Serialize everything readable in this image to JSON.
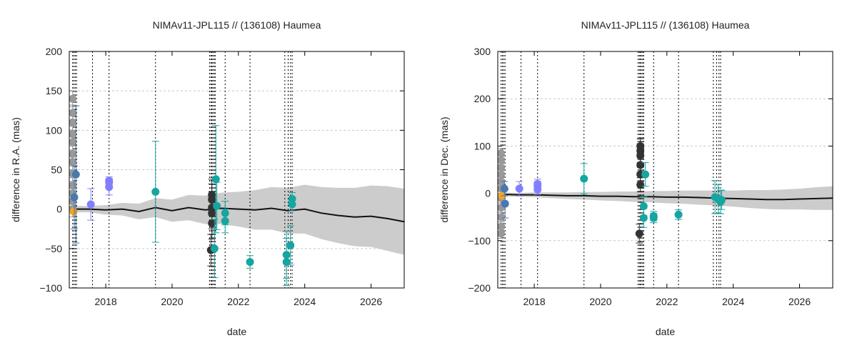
{
  "chart_data": [
    {
      "type": "scatter",
      "title": "NIMAv11-JPL115 // (136108) Haumea",
      "xlabel": "date",
      "ylabel": "difference in R.A. (mas)",
      "xlim": [
        2016.9,
        2027.0
      ],
      "ylim": [
        -100,
        200
      ],
      "xticks": [
        2018,
        2020,
        2022,
        2024,
        2026
      ],
      "yticks": [
        -100,
        -50,
        0,
        50,
        100,
        150,
        200
      ],
      "grid": "horizontal-dashed",
      "vlines": [
        2017.0,
        2017.04,
        2017.08,
        2017.12,
        2017.6,
        2018.1,
        2019.5,
        2021.13,
        2021.17,
        2021.2,
        2021.23,
        2021.27,
        2021.3,
        2021.6,
        2022.35,
        2023.4,
        2023.5,
        2023.57,
        2023.62
      ],
      "model": {
        "x": [
          2017.0,
          2017.5,
          2018.0,
          2018.5,
          2019.0,
          2019.5,
          2020.0,
          2020.5,
          2021.0,
          2021.5,
          2022.0,
          2022.5,
          2023.0,
          2023.5,
          2024.0,
          2024.5,
          2025.0,
          2025.5,
          2026.0,
          2026.5,
          2027.0
        ],
        "y": [
          0,
          0,
          -1,
          0,
          -3,
          2,
          -2,
          2,
          -1,
          1,
          0,
          -1,
          1,
          -2,
          0,
          -5,
          -8,
          -10,
          -9,
          -12,
          -16
        ],
        "band": [
          4,
          4,
          6,
          8,
          10,
          12,
          14,
          16,
          18,
          20,
          22,
          25,
          27,
          29,
          31,
          33,
          35,
          37,
          39,
          41,
          42
        ]
      },
      "series": [
        {
          "name": "",
          "color": "#999999",
          "points": [
            {
              "x": 2017.0,
              "y": 140,
              "err": 10
            },
            {
              "x": 2017.0,
              "y": 122,
              "err": 10
            },
            {
              "x": 2017.0,
              "y": 110,
              "err": 10
            },
            {
              "x": 2017.0,
              "y": 95,
              "err": 10
            },
            {
              "x": 2017.0,
              "y": 85,
              "err": 10
            },
            {
              "x": 2017.0,
              "y": 70,
              "err": 10
            },
            {
              "x": 2017.0,
              "y": 60,
              "err": 10
            },
            {
              "x": 2017.0,
              "y": 45,
              "err": 10
            },
            {
              "x": 2017.0,
              "y": 30,
              "err": 10
            },
            {
              "x": 2017.0,
              "y": 20,
              "err": 10
            },
            {
              "x": 2017.0,
              "y": 10,
              "err": 10
            },
            {
              "x": 2017.0,
              "y": 0,
              "err": 10
            }
          ]
        },
        {
          "name": "",
          "color": "#f5a623",
          "points": [
            {
              "x": 2017.03,
              "y": -3,
              "err": 0
            }
          ]
        },
        {
          "name": "",
          "color": "#4a78b0",
          "points": [
            {
              "x": 2017.1,
              "y": 44,
              "err": 87
            },
            {
              "x": 2017.05,
              "y": 15,
              "err": 40
            }
          ]
        },
        {
          "name": "",
          "color": "#8080ff",
          "points": [
            {
              "x": 2017.55,
              "y": 6,
              "err": 20
            },
            {
              "x": 2018.1,
              "y": 36,
              "err": 5
            },
            {
              "x": 2018.1,
              "y": 34,
              "err": 5
            },
            {
              "x": 2018.1,
              "y": 28,
              "err": 10
            }
          ]
        },
        {
          "name": "",
          "color": "#333333",
          "points": [
            {
              "x": 2021.2,
              "y": 18,
              "err": 20
            },
            {
              "x": 2021.2,
              "y": 12,
              "err": 20
            },
            {
              "x": 2021.2,
              "y": 2,
              "err": 20
            },
            {
              "x": 2021.2,
              "y": -5,
              "err": 20
            },
            {
              "x": 2021.2,
              "y": -18,
              "err": 20
            },
            {
              "x": 2021.17,
              "y": -52,
              "err": 20
            }
          ]
        },
        {
          "name": "",
          "color": "#16a5a0",
          "points": [
            {
              "x": 2019.5,
              "y": 22,
              "err": 64
            },
            {
              "x": 2021.32,
              "y": 38,
              "err": 68
            },
            {
              "x": 2021.35,
              "y": 4,
              "err": 30
            },
            {
              "x": 2021.28,
              "y": -50,
              "err": 37
            },
            {
              "x": 2021.6,
              "y": -5,
              "err": 15
            },
            {
              "x": 2021.6,
              "y": -15,
              "err": 15
            },
            {
              "x": 2022.35,
              "y": -67,
              "err": 8
            },
            {
              "x": 2023.45,
              "y": -58,
              "err": 30
            },
            {
              "x": 2023.45,
              "y": -67,
              "err": 30
            },
            {
              "x": 2023.57,
              "y": -46,
              "err": 25
            },
            {
              "x": 2023.62,
              "y": 13,
              "err": 8
            },
            {
              "x": 2023.62,
              "y": 6,
              "err": 8
            }
          ]
        }
      ]
    },
    {
      "type": "scatter",
      "title": "NIMAv11-JPL115 // (136108) Haumea",
      "xlabel": "date",
      "ylabel": "difference in Dec. (mas)",
      "xlim": [
        2016.9,
        2027.0
      ],
      "ylim": [
        -200,
        300
      ],
      "xticks": [
        2018,
        2020,
        2022,
        2024,
        2026
      ],
      "yticks": [
        -200,
        -100,
        0,
        100,
        200,
        300
      ],
      "grid": "horizontal-dashed",
      "vlines": [
        2017.0,
        2017.04,
        2017.08,
        2017.12,
        2017.6,
        2018.1,
        2019.5,
        2021.13,
        2021.17,
        2021.2,
        2021.23,
        2021.27,
        2021.3,
        2021.6,
        2022.35,
        2023.4,
        2023.5,
        2023.57,
        2023.62
      ],
      "model": {
        "x": [
          2017.0,
          2017.5,
          2018.0,
          2018.5,
          2019.0,
          2019.5,
          2020.0,
          2020.5,
          2021.0,
          2021.5,
          2022.0,
          2022.5,
          2023.0,
          2023.5,
          2024.0,
          2024.5,
          2025.0,
          2025.5,
          2026.0,
          2026.5,
          2027.0
        ],
        "y": [
          -2,
          -3,
          -3,
          -4,
          -5,
          -5,
          -6,
          -6,
          -7,
          -7,
          -8,
          -8,
          -9,
          -10,
          -11,
          -12,
          -13,
          -13,
          -12,
          -11,
          -10
        ],
        "band": [
          4,
          4,
          5,
          6,
          7,
          8,
          9,
          10,
          11,
          12,
          13,
          14,
          15,
          16,
          17,
          19,
          20,
          21,
          22,
          24,
          25
        ]
      },
      "series": [
        {
          "name": "",
          "color": "#999999",
          "points": [
            {
              "x": 2017.0,
              "y": 85,
              "err": 10
            },
            {
              "x": 2017.0,
              "y": 70,
              "err": 10
            },
            {
              "x": 2017.0,
              "y": 55,
              "err": 10
            },
            {
              "x": 2017.0,
              "y": 40,
              "err": 10
            },
            {
              "x": 2017.0,
              "y": 25,
              "err": 10
            },
            {
              "x": 2017.0,
              "y": 10,
              "err": 10
            },
            {
              "x": 2017.0,
              "y": -10,
              "err": 10
            },
            {
              "x": 2017.0,
              "y": -30,
              "err": 10
            },
            {
              "x": 2017.0,
              "y": -50,
              "err": 10
            },
            {
              "x": 2017.0,
              "y": -70,
              "err": 10
            },
            {
              "x": 2017.0,
              "y": -85,
              "err": 10
            }
          ]
        },
        {
          "name": "",
          "color": "#f5a623",
          "points": [
            {
              "x": 2017.03,
              "y": -5,
              "err": 0
            }
          ]
        },
        {
          "name": "",
          "color": "#4a78b0",
          "points": [
            {
              "x": 2017.1,
              "y": 10,
              "err": 15
            },
            {
              "x": 2017.12,
              "y": -22,
              "err": 30
            }
          ]
        },
        {
          "name": "",
          "color": "#8080ff",
          "points": [
            {
              "x": 2017.55,
              "y": 10,
              "err": 15
            },
            {
              "x": 2018.1,
              "y": 20,
              "err": 10
            },
            {
              "x": 2018.1,
              "y": 15,
              "err": 10
            },
            {
              "x": 2018.1,
              "y": 8,
              "err": 10
            }
          ]
        },
        {
          "name": "",
          "color": "#333333",
          "points": [
            {
              "x": 2021.2,
              "y": 100,
              "err": 15
            },
            {
              "x": 2021.2,
              "y": 90,
              "err": 15
            },
            {
              "x": 2021.2,
              "y": 80,
              "err": 15
            },
            {
              "x": 2021.2,
              "y": 60,
              "err": 15
            },
            {
              "x": 2021.2,
              "y": 40,
              "err": 15
            },
            {
              "x": 2021.2,
              "y": 18,
              "err": 15
            },
            {
              "x": 2021.17,
              "y": -85,
              "err": 20
            }
          ]
        },
        {
          "name": "",
          "color": "#16a5a0",
          "points": [
            {
              "x": 2019.5,
              "y": 31,
              "err": 32
            },
            {
              "x": 2021.35,
              "y": 40,
              "err": 25
            },
            {
              "x": 2021.3,
              "y": -27,
              "err": 20
            },
            {
              "x": 2021.3,
              "y": -52,
              "err": 20
            },
            {
              "x": 2021.6,
              "y": -48,
              "err": 10
            },
            {
              "x": 2021.6,
              "y": -52,
              "err": 10
            },
            {
              "x": 2022.35,
              "y": -45,
              "err": 10
            },
            {
              "x": 2023.45,
              "y": -8,
              "err": 35
            },
            {
              "x": 2023.55,
              "y": -12,
              "err": 30
            },
            {
              "x": 2023.62,
              "y": -18,
              "err": 25
            },
            {
              "x": 2023.65,
              "y": -14,
              "err": 20
            }
          ]
        }
      ]
    }
  ]
}
